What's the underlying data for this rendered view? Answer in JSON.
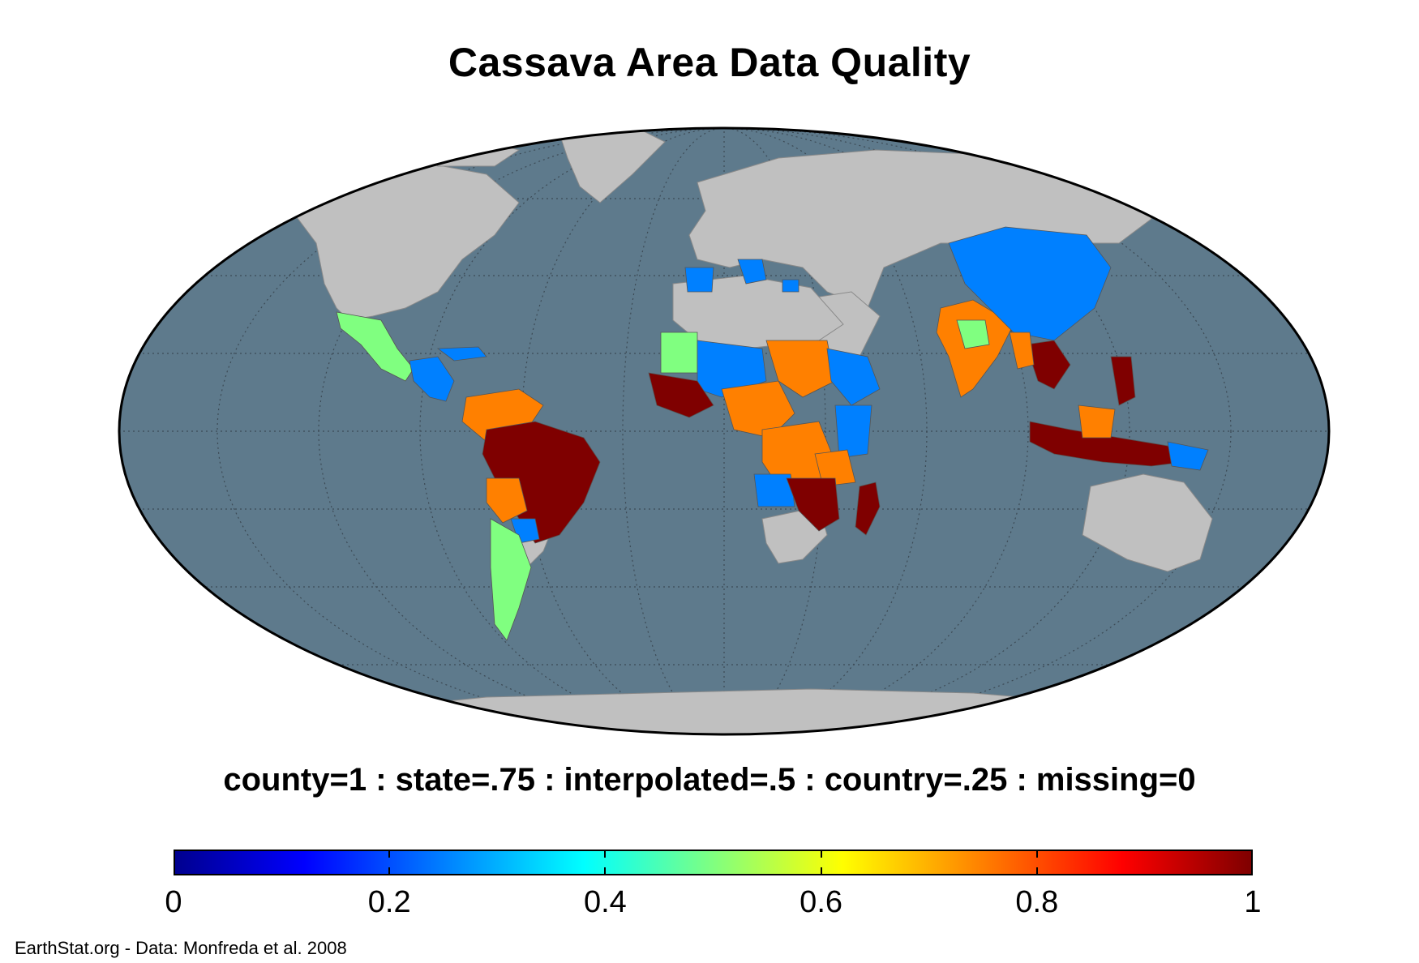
{
  "title": "Cassava Area Data Quality",
  "legend": {
    "caption": "county=1 : state=.75 : interpolated=.5 : country=.25 : missing=0",
    "ticks": [
      "0",
      "0.2",
      "0.4",
      "0.6",
      "0.8",
      "1"
    ],
    "range": [
      0,
      1
    ]
  },
  "credit": "EarthStat.org - Data: Monfreda et al. 2008",
  "colors": {
    "ocean": "#5e7a8c",
    "land_nodata": "#c0c0c0",
    "county": "#7f0000",
    "state": "#ff8000",
    "interpolated": "#80ff80",
    "country": "#0080ff"
  },
  "regions": [
    {
      "name": "Mexico",
      "value": 0.5
    },
    {
      "name": "Central America",
      "value": 0.25
    },
    {
      "name": "Brazil",
      "value": 1
    },
    {
      "name": "Colombia/Venezuela",
      "value": 0.75
    },
    {
      "name": "Argentina",
      "value": 0.5
    },
    {
      "name": "West Africa",
      "value": 1
    },
    {
      "name": "Nigeria/Central Africa",
      "value": 0.75
    },
    {
      "name": "East Africa",
      "value": 0.25
    },
    {
      "name": "Mozambique",
      "value": 1
    },
    {
      "name": "Madagascar",
      "value": 1
    },
    {
      "name": "India",
      "value": 0.75
    },
    {
      "name": "China",
      "value": 0.25
    },
    {
      "name": "Thailand",
      "value": 1
    },
    {
      "name": "Indonesia",
      "value": 1
    }
  ]
}
